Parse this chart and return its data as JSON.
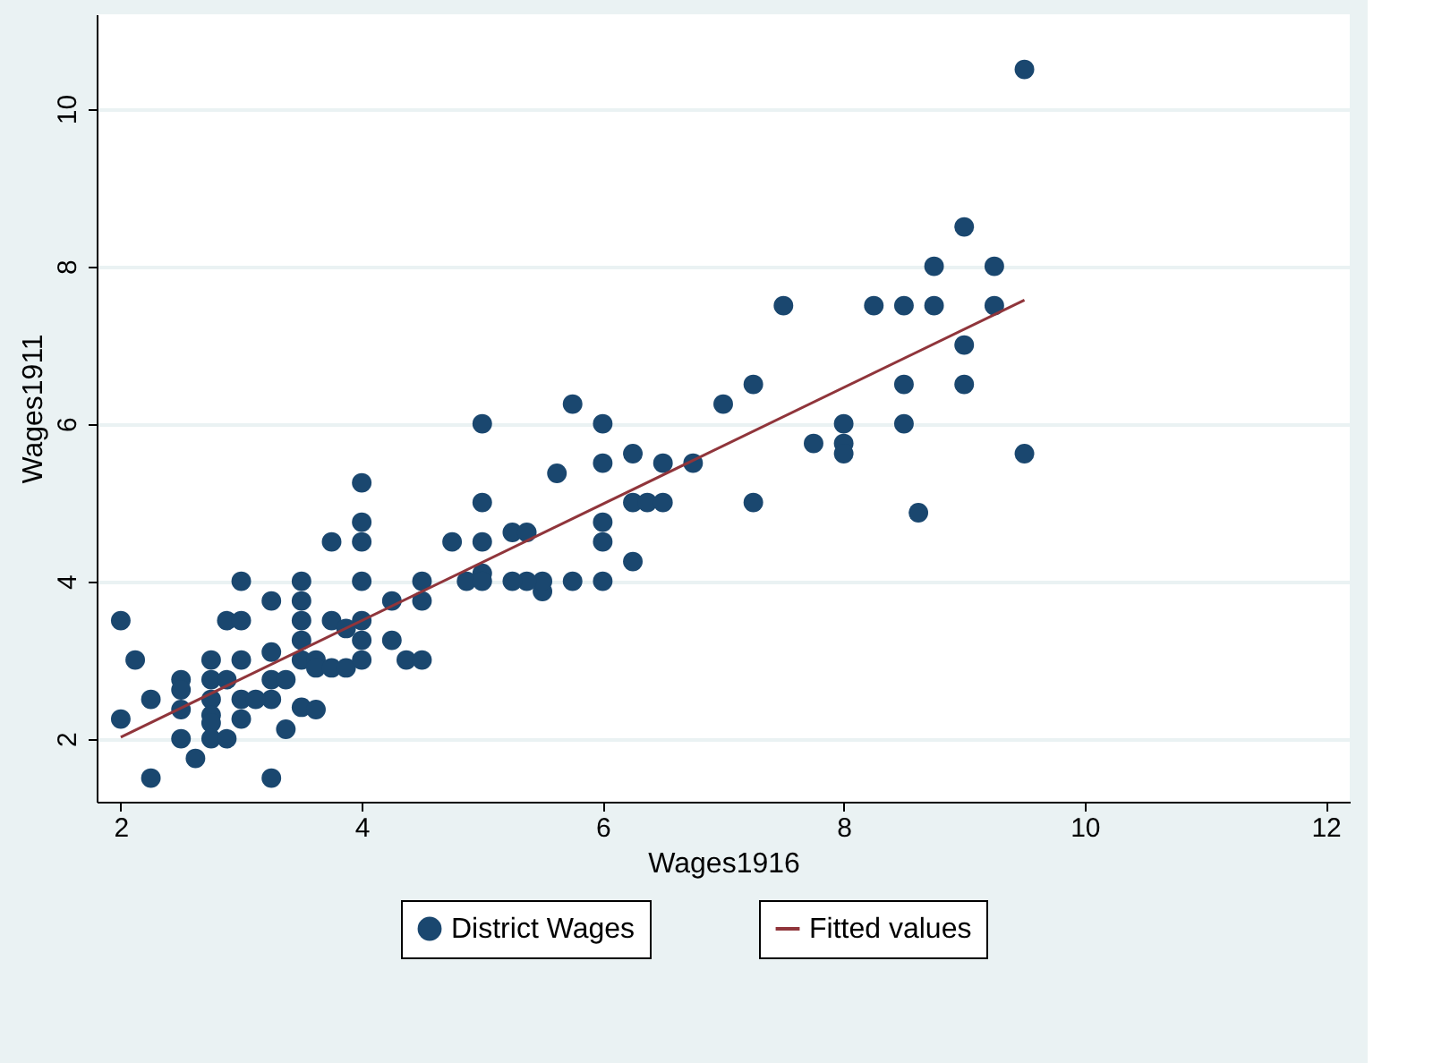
{
  "chart_data": {
    "type": "scatter",
    "xlabel": "Wages1916",
    "ylabel": "Wages1911",
    "xlim": [
      1.8,
      12.2
    ],
    "ylim": [
      1.2,
      11.2
    ],
    "xticks": [
      2,
      4,
      6,
      8,
      10,
      12
    ],
    "yticks": [
      2,
      4,
      6,
      8,
      10
    ],
    "grid": "y",
    "legend": "bottom",
    "series": [
      {
        "name": "District Wages",
        "marker": "circle",
        "color": "#1a476f",
        "x": [
          2.0,
          2.0,
          2.12,
          2.25,
          2.25,
          2.5,
          2.5,
          2.5,
          2.5,
          2.62,
          2.75,
          2.75,
          2.75,
          2.75,
          2.75,
          2.75,
          2.88,
          2.88,
          2.88,
          3.0,
          3.0,
          3.0,
          3.0,
          3.0,
          3.25,
          3.25,
          3.25,
          3.25,
          3.25,
          3.12,
          3.37,
          3.37,
          3.5,
          3.5,
          3.5,
          3.5,
          3.5,
          3.5,
          3.62,
          3.62,
          3.62,
          3.75,
          3.75,
          3.75,
          3.87,
          4.0,
          4.0,
          4.0,
          4.0,
          4.0,
          4.0,
          4.0,
          3.87,
          4.25,
          4.25,
          4.37,
          4.5,
          4.5,
          4.5,
          5.0,
          5.75,
          6.0,
          6.0,
          5.62,
          6.25,
          6.5,
          6.75,
          7.0,
          7.25,
          7.75,
          7.25,
          5.0,
          6.25,
          6.37,
          6.5,
          6.0,
          6.0,
          6.25,
          6.0,
          5.75,
          5.5,
          5.5,
          5.37,
          5.25,
          5.25,
          5.37,
          5.0,
          4.75,
          5.0,
          4.87,
          5.0,
          9.5,
          9.0,
          8.75,
          9.25,
          7.5,
          8.25,
          8.5,
          8.75,
          9.25,
          9.0,
          8.5,
          9.0,
          8.5,
          8.0,
          8.0,
          8.0,
          9.5,
          8.62
        ],
        "values": [
          3.5,
          2.25,
          3.0,
          2.5,
          1.5,
          2.75,
          2.62,
          2.37,
          2.0,
          1.75,
          3.0,
          2.75,
          2.5,
          2.3,
          2.2,
          2.0,
          2.75,
          2.0,
          3.5,
          3.5,
          4.0,
          3.0,
          2.25,
          2.5,
          3.75,
          3.1,
          2.75,
          2.5,
          1.5,
          2.5,
          2.75,
          2.12,
          4.0,
          3.75,
          3.5,
          3.25,
          3.0,
          2.4,
          3.0,
          2.9,
          2.37,
          4.5,
          3.5,
          2.9,
          2.9,
          5.25,
          4.75,
          4.5,
          4.0,
          3.5,
          3.25,
          3.0,
          3.4,
          3.75,
          3.25,
          3.0,
          3.0,
          4.0,
          3.75,
          6.0,
          6.25,
          6.0,
          5.5,
          5.37,
          5.62,
          5.5,
          5.5,
          6.25,
          6.5,
          5.75,
          5.0,
          5.0,
          5.0,
          5.0,
          5.0,
          4.75,
          4.5,
          4.25,
          4.0,
          4.0,
          3.87,
          4.0,
          4.0,
          4.0,
          4.62,
          4.62,
          4.5,
          4.5,
          4.1,
          4.0,
          4.0,
          10.5,
          8.5,
          8.0,
          8.0,
          7.5,
          7.5,
          7.5,
          7.5,
          7.5,
          7.0,
          6.5,
          6.5,
          6.0,
          6.0,
          5.75,
          5.62,
          5.62,
          4.87
        ]
      },
      {
        "name": "Fitted values",
        "type": "line",
        "marker": "none",
        "color": "#90353b",
        "x": [
          2.0,
          9.5
        ],
        "values": [
          2.02,
          7.57
        ]
      }
    ]
  }
}
